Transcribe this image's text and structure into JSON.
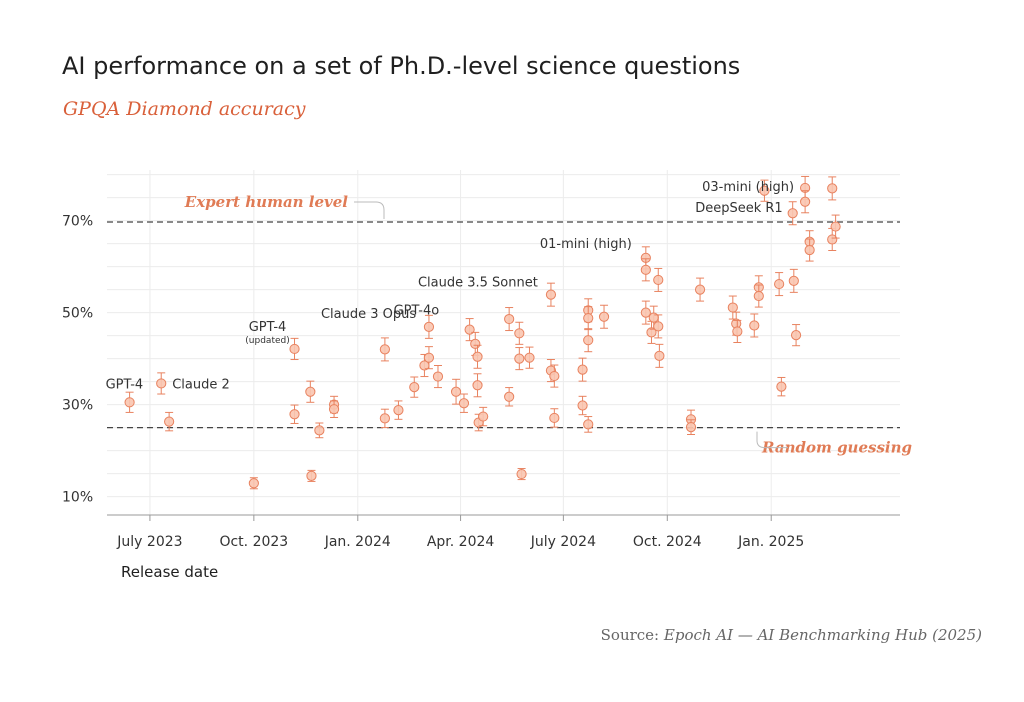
{
  "title": "AI performance on a set of Ph.D.-level science questions",
  "subtitle": "GPQA Diamond accuracy",
  "source": {
    "prefix": "Source: ",
    "name": "Epoch AI — AI Benchmarking Hub (2025)"
  },
  "colors": {
    "point_fill": "#f9c5b0",
    "point_stroke": "#e8825f",
    "reference_label": "#e07b55",
    "subtitle": "#d9603a"
  },
  "chart_data": {
    "type": "scatter",
    "title": "AI performance on a set of Ph.D.-level science questions",
    "subtitle": "GPQA Diamond accuracy",
    "xlabel": "Release date",
    "ylabel": "",
    "x_ticks": [
      {
        "label": "July 2023",
        "date": "2023-07-01"
      },
      {
        "label": "Oct. 2023",
        "date": "2023-10-01"
      },
      {
        "label": "Jan. 2024",
        "date": "2024-01-01"
      },
      {
        "label": "Apr. 2024",
        "date": "2024-04-01"
      },
      {
        "label": "July 2024",
        "date": "2024-07-01"
      },
      {
        "label": "Oct. 2024",
        "date": "2024-10-01"
      },
      {
        "label": "Jan. 2025",
        "date": "2025-01-01"
      }
    ],
    "y_ticks": [
      {
        "label": "10%",
        "value": 10
      },
      {
        "label": "30%",
        "value": 30
      },
      {
        "label": "50%",
        "value": 50
      },
      {
        "label": "70%",
        "value": 70
      }
    ],
    "xlim": [
      "2023-05-24",
      "2025-04-25"
    ],
    "ylim": [
      6,
      81
    ],
    "grid": true,
    "reference_lines": [
      {
        "label": "Expert human level",
        "value": 69.7
      },
      {
        "label": "Random guessing",
        "value": 25
      }
    ],
    "points": [
      {
        "date": "2023-06-13",
        "y": 30.5,
        "err": 2.2,
        "label": "GPT-4"
      },
      {
        "date": "2023-07-11",
        "y": 34.6,
        "err": 2.3,
        "label": "Claude 2"
      },
      {
        "date": "2023-07-18",
        "y": 26.3,
        "err": 2.0
      },
      {
        "date": "2023-10-01",
        "y": 12.9,
        "err": 1.2
      },
      {
        "date": "2023-11-06",
        "y": 42.1,
        "err": 2.3,
        "label": "GPT-4",
        "sublabel": "(updated)"
      },
      {
        "date": "2023-11-06",
        "y": 27.9,
        "err": 2.0
      },
      {
        "date": "2023-11-20",
        "y": 32.8,
        "err": 2.3
      },
      {
        "date": "2023-11-21",
        "y": 14.5,
        "err": 1.2
      },
      {
        "date": "2023-11-28",
        "y": 24.4,
        "err": 1.6
      },
      {
        "date": "2023-12-11",
        "y": 30.0,
        "err": 1.8
      },
      {
        "date": "2023-12-11",
        "y": 29.0,
        "err": 1.8
      },
      {
        "date": "2024-01-25",
        "y": 42.0,
        "err": 2.5
      },
      {
        "date": "2024-01-25",
        "y": 27.0,
        "err": 2.0
      },
      {
        "date": "2024-02-06",
        "y": 28.8,
        "err": 2.0
      },
      {
        "date": "2024-02-20",
        "y": 33.8,
        "err": 2.2
      },
      {
        "date": "2024-02-29",
        "y": 38.5,
        "err": 2.4
      },
      {
        "date": "2024-03-04",
        "y": 46.9,
        "err": 2.5,
        "label": "Claude 3 Opus"
      },
      {
        "date": "2024-03-04",
        "y": 40.2,
        "err": 2.4
      },
      {
        "date": "2024-03-12",
        "y": 36.1,
        "err": 2.4
      },
      {
        "date": "2024-03-28",
        "y": 32.8,
        "err": 2.7
      },
      {
        "date": "2024-04-04",
        "y": 30.3,
        "err": 2.0
      },
      {
        "date": "2024-04-09",
        "y": 46.3,
        "err": 2.4,
        "label": "GPT-4o"
      },
      {
        "date": "2024-04-14",
        "y": 43.2,
        "err": 2.5
      },
      {
        "date": "2024-04-16",
        "y": 40.4,
        "err": 2.5
      },
      {
        "date": "2024-04-16",
        "y": 34.2,
        "err": 2.5
      },
      {
        "date": "2024-04-17",
        "y": 26.1,
        "err": 1.8
      },
      {
        "date": "2024-04-21",
        "y": 27.4,
        "err": 2.0
      },
      {
        "date": "2024-05-14",
        "y": 48.6,
        "err": 2.5
      },
      {
        "date": "2024-05-14",
        "y": 31.7,
        "err": 2.0
      },
      {
        "date": "2024-05-23",
        "y": 45.5,
        "err": 2.4
      },
      {
        "date": "2024-05-23",
        "y": 40.0,
        "err": 2.4
      },
      {
        "date": "2024-05-25",
        "y": 14.9,
        "err": 1.2
      },
      {
        "date": "2024-06-01",
        "y": 40.2,
        "err": 2.3
      },
      {
        "date": "2024-06-20",
        "y": 53.9,
        "err": 2.5,
        "label": "Claude 3.5 Sonnet"
      },
      {
        "date": "2024-06-20",
        "y": 37.4,
        "err": 2.4
      },
      {
        "date": "2024-06-23",
        "y": 36.2,
        "err": 2.4
      },
      {
        "date": "2024-06-23",
        "y": 27.1,
        "err": 2.0
      },
      {
        "date": "2024-07-18",
        "y": 29.8,
        "err": 2.0
      },
      {
        "date": "2024-07-18",
        "y": 37.6,
        "err": 2.5
      },
      {
        "date": "2024-07-23",
        "y": 50.5,
        "err": 2.5
      },
      {
        "date": "2024-07-23",
        "y": 48.8,
        "err": 2.5
      },
      {
        "date": "2024-07-23",
        "y": 44.0,
        "err": 2.5
      },
      {
        "date": "2024-07-23",
        "y": 25.7,
        "err": 1.7
      },
      {
        "date": "2024-08-06",
        "y": 49.1,
        "err": 2.5
      },
      {
        "date": "2024-09-12",
        "y": 61.9,
        "err": 2.4,
        "label": "01-mini (high)"
      },
      {
        "date": "2024-09-12",
        "y": 59.3,
        "err": 2.4
      },
      {
        "date": "2024-09-12",
        "y": 50.0,
        "err": 2.5
      },
      {
        "date": "2024-09-17",
        "y": 45.7,
        "err": 2.4
      },
      {
        "date": "2024-09-19",
        "y": 48.9,
        "err": 2.5
      },
      {
        "date": "2024-09-23",
        "y": 57.1,
        "err": 2.5
      },
      {
        "date": "2024-09-23",
        "y": 47.0,
        "err": 2.5
      },
      {
        "date": "2024-09-24",
        "y": 40.6,
        "err": 2.5
      },
      {
        "date": "2024-10-22",
        "y": 26.8,
        "err": 2.0
      },
      {
        "date": "2024-10-22",
        "y": 25.1,
        "err": 1.6
      },
      {
        "date": "2024-10-30",
        "y": 55.0,
        "err": 2.5
      },
      {
        "date": "2024-11-28",
        "y": 51.1,
        "err": 2.5
      },
      {
        "date": "2024-12-01",
        "y": 47.6,
        "err": 2.5
      },
      {
        "date": "2024-12-02",
        "y": 45.9,
        "err": 2.4
      },
      {
        "date": "2024-12-17",
        "y": 47.2,
        "err": 2.5
      },
      {
        "date": "2024-12-21",
        "y": 55.5,
        "err": 2.5
      },
      {
        "date": "2024-12-21",
        "y": 53.6,
        "err": 2.4
      },
      {
        "date": "2024-12-26",
        "y": 76.5,
        "err": 2.3
      },
      {
        "date": "2025-01-08",
        "y": 56.2,
        "err": 2.5
      },
      {
        "date": "2025-01-10",
        "y": 33.9,
        "err": 2.0
      },
      {
        "date": "2025-01-20",
        "y": 71.6,
        "err": 2.5,
        "label": "DeepSeek R1"
      },
      {
        "date": "2025-01-21",
        "y": 56.9,
        "err": 2.5
      },
      {
        "date": "2025-01-23",
        "y": 45.1,
        "err": 2.3
      },
      {
        "date": "2025-01-31",
        "y": 77.1,
        "err": 2.5,
        "label": "03-mini (high)"
      },
      {
        "date": "2025-01-31",
        "y": 74.1,
        "err": 2.4
      },
      {
        "date": "2025-02-04",
        "y": 65.4,
        "err": 2.4
      },
      {
        "date": "2025-02-04",
        "y": 63.6,
        "err": 2.4
      },
      {
        "date": "2025-02-24",
        "y": 77.0,
        "err": 2.5
      },
      {
        "date": "2025-02-24",
        "y": 65.9,
        "err": 2.4
      },
      {
        "date": "2025-02-27",
        "y": 68.7,
        "err": 2.5
      }
    ]
  }
}
